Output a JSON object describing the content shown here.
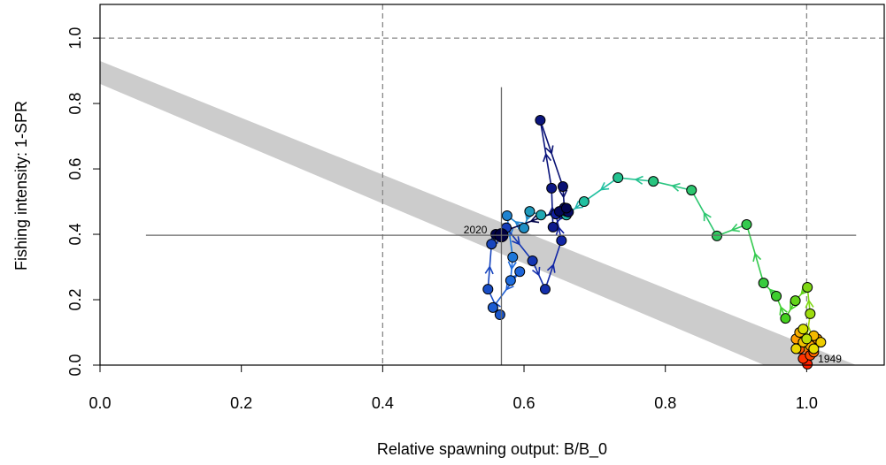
{
  "chart_data": {
    "type": "phase",
    "x_label": "Relative spawning output: B/B_0",
    "y_label": "Fishing intensity: 1-SPR",
    "xlim": [
      0,
      1.111
    ],
    "ylim": [
      0,
      1.103
    ],
    "xticks": [
      {
        "value": 0,
        "label": "0.0"
      },
      0.2,
      0.4,
      0.6,
      0.8,
      {
        "value": 1,
        "label": "1.0"
      }
    ],
    "yticks": [
      {
        "value": 0,
        "label": "0.0"
      },
      0.2,
      0.4,
      0.6,
      0.8,
      {
        "value": 1,
        "label": "1.0"
      }
    ],
    "reference_lines": {
      "x": [
        0.4,
        1.0
      ],
      "y": [
        1.0
      ],
      "color": "#888888"
    },
    "band": {
      "color": "#cccccc",
      "upper": {
        "x": [
          0,
          1.07
        ],
        "y": [
          0.93,
          0
        ]
      },
      "lower": {
        "x": [
          0,
          0.94
        ],
        "y": [
          0.86,
          0
        ]
      }
    },
    "final_interval": {
      "color": "#666666",
      "x": [
        0.065,
        1.07
      ],
      "y": [
        0,
        0.85
      ]
    },
    "start_label": "1949",
    "start_label_color": "#ff4020",
    "end_label": "2020",
    "end_label_color": "#000050",
    "color_ramp": [
      {
        "at": 0,
        "color": "#ff2000"
      },
      {
        "at": 0.12,
        "color": "#ff9a00"
      },
      {
        "at": 0.26,
        "color": "#e4e400"
      },
      {
        "at": 0.36,
        "color": "#40d020"
      },
      {
        "at": 0.5,
        "color": "#20c0a0"
      },
      {
        "at": 0.62,
        "color": "#1e6ee0"
      },
      {
        "at": 0.8,
        "color": "#1020a0"
      },
      {
        "at": 1,
        "color": "#000040"
      }
    ],
    "x": [
      1.001,
      0.995,
      1.005,
      0.99,
      1.01,
      1.0,
      1.015,
      0.985,
      1.005,
      0.99,
      1.01,
      0.995,
      1.02,
      0.985,
      1.01,
      0.995,
      1.0,
      1.005,
      1.001,
      0.984,
      0.97,
      0.957,
      0.939,
      0.915,
      0.873,
      0.837,
      0.783,
      0.733,
      0.685,
      0.66,
      0.624,
      0.608,
      0.6,
      0.576,
      0.584,
      0.581,
      0.594,
      0.556,
      0.566,
      0.549,
      0.554,
      0.575,
      0.612,
      0.63,
      0.653,
      0.645,
      0.66,
      0.641,
      0.639,
      0.623,
      0.655,
      0.657,
      0.663,
      0.65,
      0.66,
      0.56,
      0.568
    ],
    "y": [
      0.003,
      0.02,
      0.03,
      0.05,
      0.04,
      0.07,
      0.08,
      0.08,
      0.06,
      0.1,
      0.09,
      0.07,
      0.07,
      0.05,
      0.05,
      0.11,
      0.08,
      0.157,
      0.238,
      0.197,
      0.143,
      0.211,
      0.251,
      0.43,
      0.395,
      0.535,
      0.562,
      0.573,
      0.5,
      0.459,
      0.459,
      0.47,
      0.419,
      0.457,
      0.33,
      0.259,
      0.286,
      0.176,
      0.154,
      0.232,
      0.37,
      0.42,
      0.319,
      0.232,
      0.381,
      0.462,
      0.47,
      0.422,
      0.541,
      0.749,
      0.546,
      0.481,
      0.468,
      0.47,
      0.48,
      0.4,
      0.397
    ]
  }
}
